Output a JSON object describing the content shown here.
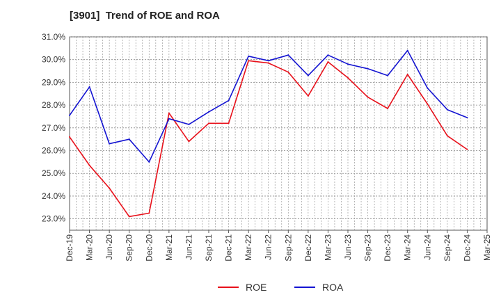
{
  "chart_data": {
    "type": "line",
    "title": "[3901]  Trend of ROE and ROA",
    "xlabel": "",
    "ylabel": "",
    "ylim": [
      22.5,
      31.0
    ],
    "yticks": [
      "23.0%",
      "24.0%",
      "25.0%",
      "26.0%",
      "27.0%",
      "28.0%",
      "29.0%",
      "30.0%",
      "31.0%"
    ],
    "ytick_values": [
      23,
      24,
      25,
      26,
      27,
      28,
      29,
      30,
      31
    ],
    "categories": [
      "Dec-19",
      "Mar-20",
      "Jun-20",
      "Sep-20",
      "Dec-20",
      "Mar-21",
      "Jun-21",
      "Sep-21",
      "Dec-21",
      "Mar-22",
      "Jun-22",
      "Sep-22",
      "Dec-22",
      "Mar-23",
      "Jun-23",
      "Sep-23",
      "Dec-23",
      "Mar-24",
      "Jun-24",
      "Sep-24",
      "Dec-24",
      "Mar-25"
    ],
    "grid": true,
    "legend_position": "bottom-center",
    "series": [
      {
        "name": "ROE",
        "color": "#e8101a",
        "values": [
          26.6,
          25.35,
          24.35,
          23.1,
          23.25,
          27.65,
          26.4,
          27.2,
          27.2,
          29.95,
          29.85,
          29.45,
          28.4,
          29.9,
          29.2,
          28.35,
          27.85,
          29.35,
          28.05,
          26.65,
          26.05,
          null
        ]
      },
      {
        "name": "ROA",
        "color": "#1414d2",
        "values": [
          27.55,
          28.8,
          26.3,
          26.5,
          25.5,
          27.4,
          27.15,
          27.7,
          28.2,
          30.15,
          29.95,
          30.2,
          29.3,
          30.2,
          29.8,
          29.6,
          29.3,
          30.4,
          28.75,
          27.8,
          27.45,
          null
        ]
      }
    ]
  }
}
